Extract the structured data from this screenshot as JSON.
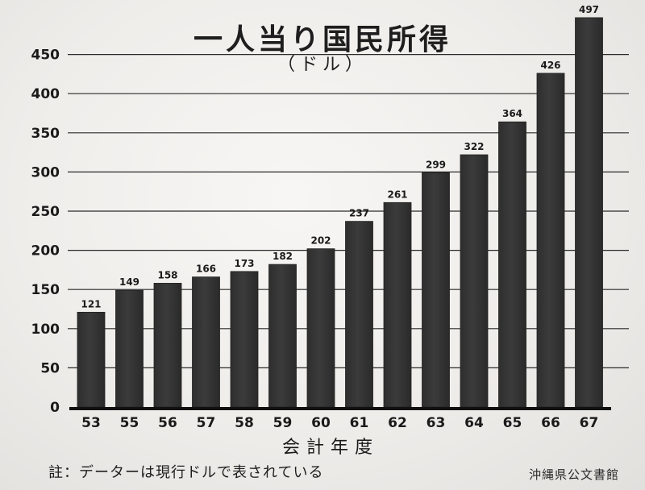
{
  "chart_data": {
    "type": "bar",
    "title": "一人当り国民所得",
    "subtitle": "（ドル）",
    "xlabel": "会計年度",
    "ylabel": "",
    "categories": [
      "53",
      "55",
      "56",
      "57",
      "58",
      "59",
      "60",
      "61",
      "62",
      "63",
      "64",
      "65",
      "66",
      "67"
    ],
    "values": [
      121,
      149,
      158,
      166,
      173,
      182,
      202,
      237,
      261,
      299,
      322,
      364,
      426,
      497
    ],
    "ylim": [
      0,
      500
    ],
    "yticks": [
      0,
      50,
      100,
      150,
      200,
      250,
      300,
      350,
      400,
      450
    ],
    "grid": true,
    "legend": "none",
    "bar_color": "#3b3b3b"
  },
  "note": "註：データーは現行ドルで表されている",
  "archive_label": "沖縄県公文書館"
}
